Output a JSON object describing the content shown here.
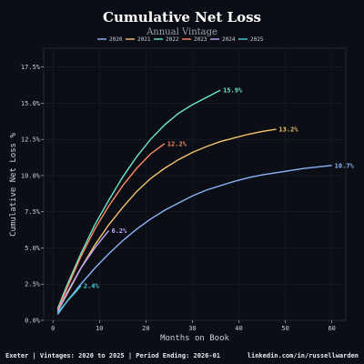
{
  "chart_data": {
    "type": "line",
    "title": "Cumulative Net Loss",
    "subtitle": "Annual Vintage",
    "xlabel": "Months on Book",
    "ylabel": "Cumulative Net Loss %",
    "xlim": [
      -2,
      63
    ],
    "ylim": [
      0,
      18.8
    ],
    "x_ticks": [
      0,
      10,
      20,
      30,
      40,
      50,
      60
    ],
    "y_ticks": [
      0,
      2.5,
      5,
      7.5,
      10,
      12.5,
      15,
      17.5
    ],
    "x_tick_labels": [
      "0",
      "10",
      "20",
      "30",
      "40",
      "50",
      "60"
    ],
    "y_tick_labels": [
      "0.0%",
      "2.5%",
      "5.0%",
      "7.5%",
      "10.0%",
      "12.5%",
      "15.0%",
      "17.5%"
    ],
    "legend_title": "Annual Vintage",
    "legend_position": "top-center",
    "series": [
      {
        "name": "2020",
        "color": "#8ab4f8",
        "end_label": "10.7%",
        "x": [
          1,
          3,
          6,
          9,
          12,
          15,
          18,
          21,
          24,
          27,
          30,
          33,
          36,
          39,
          42,
          45,
          48,
          51,
          54,
          57,
          60
        ],
        "y": [
          0.4,
          1.3,
          2.5,
          3.6,
          4.6,
          5.5,
          6.3,
          7.0,
          7.6,
          8.1,
          8.6,
          9.0,
          9.3,
          9.6,
          9.85,
          10.05,
          10.2,
          10.35,
          10.5,
          10.6,
          10.7
        ]
      },
      {
        "name": "2021",
        "color": "#f6c26b",
        "end_label": "13.2%",
        "x": [
          1,
          3,
          6,
          9,
          12,
          15,
          18,
          21,
          24,
          27,
          30,
          33,
          36,
          39,
          42,
          45,
          48
        ],
        "y": [
          0.6,
          1.8,
          3.6,
          5.2,
          6.6,
          7.8,
          8.9,
          9.8,
          10.5,
          11.1,
          11.6,
          12.0,
          12.35,
          12.6,
          12.85,
          13.05,
          13.2
        ]
      },
      {
        "name": "2022",
        "color": "#6ee7c8",
        "end_label": "15.9%",
        "x": [
          1,
          3,
          6,
          9,
          12,
          15,
          18,
          21,
          24,
          27,
          30,
          33,
          36
        ],
        "y": [
          0.8,
          2.4,
          4.6,
          6.6,
          8.3,
          9.9,
          11.3,
          12.5,
          13.5,
          14.3,
          14.9,
          15.4,
          15.9
        ]
      },
      {
        "name": "2023",
        "color": "#ff8a65",
        "end_label": "12.2%",
        "x": [
          1,
          3,
          6,
          9,
          12,
          15,
          18,
          21,
          24
        ],
        "y": [
          0.7,
          2.2,
          4.4,
          6.3,
          7.9,
          9.3,
          10.5,
          11.5,
          12.2
        ]
      },
      {
        "name": "2024",
        "color": "#c3a6ff",
        "end_label": "6.2%",
        "x": [
          1,
          3,
          6,
          9,
          12
        ],
        "y": [
          0.6,
          1.9,
          3.6,
          5.0,
          6.2
        ]
      },
      {
        "name": "2025",
        "color": "#4dd0e1",
        "end_label": "2.4%",
        "x": [
          1,
          3,
          5,
          6
        ],
        "y": [
          0.5,
          1.3,
          2.0,
          2.4
        ]
      }
    ]
  },
  "footer": {
    "left": "Exeter | Vintages: 2020 to 2025 | Period Ending: 2026-01",
    "right": "linkedin.com/in/russellwarden"
  },
  "colors": {
    "background": "#0b0e14",
    "grid": "#1f252e",
    "text": "#c9d1d9"
  }
}
